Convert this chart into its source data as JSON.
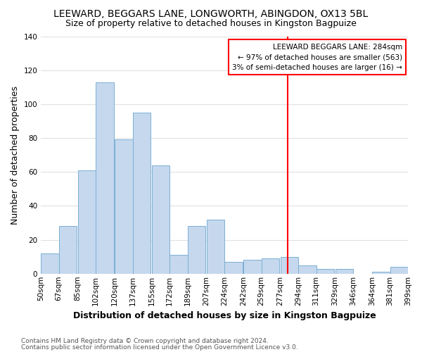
{
  "title": "LEEWARD, BEGGARS LANE, LONGWORTH, ABINGDON, OX13 5BL",
  "subtitle": "Size of property relative to detached houses in Kingston Bagpuize",
  "xlabel": "Distribution of detached houses by size in Kingston Bagpuize",
  "ylabel": "Number of detached properties",
  "bar_left_edges": [
    50,
    67,
    85,
    102,
    120,
    137,
    155,
    172,
    189,
    207,
    224,
    242,
    259,
    277,
    294,
    311,
    329,
    346,
    364,
    381
  ],
  "bar_heights": [
    12,
    28,
    61,
    113,
    79,
    95,
    64,
    11,
    28,
    32,
    7,
    8,
    9,
    10,
    5,
    3,
    3,
    0,
    1,
    4
  ],
  "bin_width": 17,
  "bar_color": "#c5d8ed",
  "bar_edgecolor": "#7bafd4",
  "background_color": "#ffffff",
  "grid_color": "#e0e0e0",
  "ylim": [
    0,
    140
  ],
  "yticks": [
    0,
    20,
    40,
    60,
    80,
    100,
    120,
    140
  ],
  "x_labels": [
    "50sqm",
    "67sqm",
    "85sqm",
    "102sqm",
    "120sqm",
    "137sqm",
    "155sqm",
    "172sqm",
    "189sqm",
    "207sqm",
    "224sqm",
    "242sqm",
    "259sqm",
    "277sqm",
    "294sqm",
    "311sqm",
    "329sqm",
    "346sqm",
    "364sqm",
    "381sqm",
    "399sqm"
  ],
  "vline_x": 284,
  "vline_color": "red",
  "legend_title": "LEEWARD BEGGARS LANE: 284sqm",
  "legend_line1": "← 97% of detached houses are smaller (563)",
  "legend_line2": "3% of semi-detached houses are larger (16) →",
  "footer1": "Contains HM Land Registry data © Crown copyright and database right 2024.",
  "footer2": "Contains public sector information licensed under the Open Government Licence v3.0.",
  "title_fontsize": 10,
  "subtitle_fontsize": 9,
  "axis_label_fontsize": 9,
  "tick_fontsize": 7.5,
  "footer_fontsize": 6.5,
  "legend_fontsize": 7.5
}
